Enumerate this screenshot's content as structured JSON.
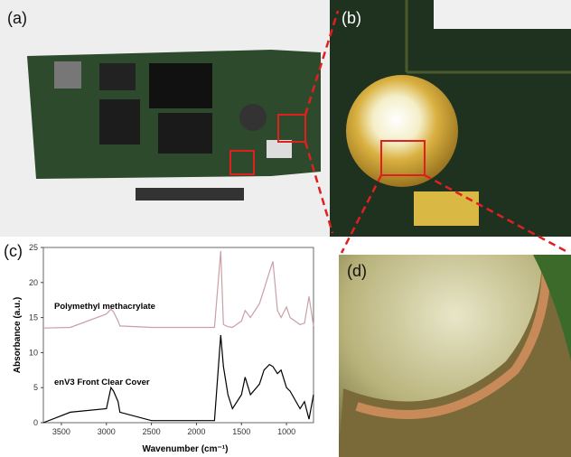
{
  "panel_labels": {
    "a": "(a)",
    "b": "(b)",
    "c": "(c)",
    "d": "(d)"
  },
  "chart_data": {
    "type": "line",
    "xlabel": "Wavenumber (cm⁻¹)",
    "ylabel": "Absorbance (a.u.)",
    "annotations": [
      "Polymethyl methacrylate",
      "enV3 Front Clear Cover"
    ],
    "x": [
      3700,
      3400,
      3000,
      2950,
      2920,
      2870,
      2850,
      2500,
      1800,
      1730,
      1700,
      1650,
      1600,
      1500,
      1460,
      1400,
      1300,
      1250,
      1190,
      1150,
      1100,
      1060,
      1000,
      960,
      850,
      800,
      750,
      700
    ],
    "series": [
      {
        "name": "Polymethyl methacrylate",
        "color": "#c9a0a8",
        "values": [
          13.5,
          13.6,
          15.5,
          16.2,
          15.8,
          14.5,
          13.8,
          13.6,
          13.6,
          24.5,
          14,
          13.7,
          13.6,
          14.5,
          16,
          15,
          17,
          19,
          21.5,
          23,
          16,
          15,
          16.5,
          15,
          14,
          14.2,
          18,
          13.8
        ]
      },
      {
        "name": "enV3 Front Clear Cover",
        "color": "#000000",
        "values": [
          0,
          1.5,
          2,
          5,
          4.5,
          3,
          1.5,
          0.3,
          0.3,
          12.5,
          8,
          4,
          2,
          4,
          6.5,
          4,
          5.5,
          7.5,
          8.3,
          8,
          7,
          7.5,
          5,
          4.5,
          2,
          3,
          0.5,
          4
        ]
      }
    ],
    "xlim": [
      3700,
      700
    ],
    "ylim": [
      0,
      25
    ],
    "xticks": [
      3500,
      3000,
      2500,
      2000,
      1500,
      1000
    ],
    "yticks": [
      0,
      5,
      10,
      15,
      20,
      25
    ]
  }
}
